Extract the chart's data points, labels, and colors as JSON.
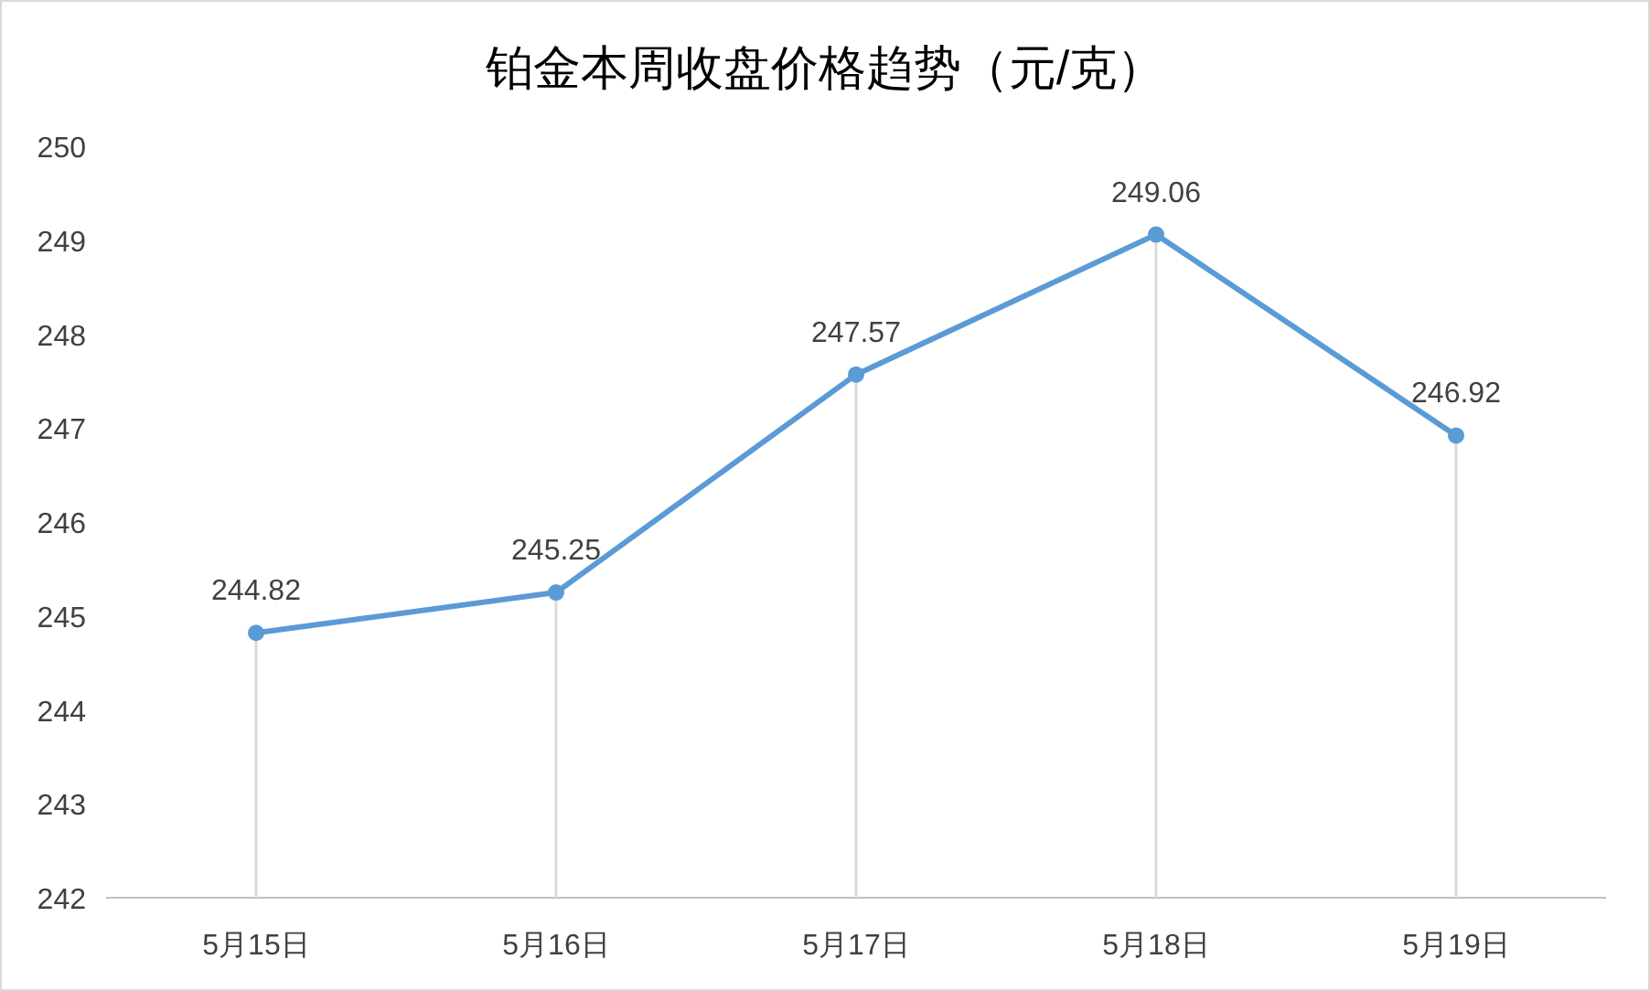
{
  "chart_data": {
    "type": "line",
    "title": "铂金本周收盘价格趋势（元/克）",
    "categories": [
      "5月15日",
      "5月16日",
      "5月17日",
      "5月18日",
      "5月19日"
    ],
    "series": [
      {
        "color": "#5b9bd5",
        "values": [
          244.82,
          245.25,
          247.57,
          249.06,
          246.92
        ]
      }
    ],
    "ylim": [
      242,
      250
    ],
    "yticks": [
      242,
      243,
      244,
      245,
      246,
      247,
      248,
      249,
      250
    ],
    "data_labels": true,
    "marker": "circle",
    "line_style": "solid",
    "grid": "x"
  }
}
